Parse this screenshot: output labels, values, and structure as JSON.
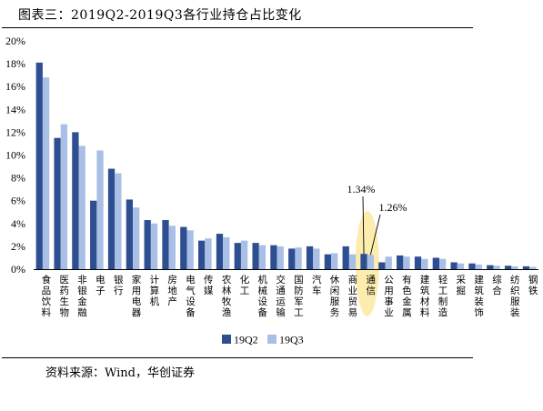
{
  "header": {
    "title": "图表三：2019Q2-2019Q3各行业持仓占比变化"
  },
  "footer": {
    "source": "资料来源：Wind，华创证券"
  },
  "chart_data": {
    "type": "bar",
    "categories": [
      "食品饮料",
      "医药生物",
      "非银金融",
      "电子",
      "银行",
      "家用电器",
      "计算机",
      "房地产",
      "电气设备",
      "传媒",
      "农林牧渔",
      "化工",
      "机械设备",
      "交通运输",
      "国防军工",
      "汽车",
      "休闲服务",
      "商业贸易",
      "通信",
      "公用事业",
      "有色金属",
      "建筑材料",
      "轻工制造",
      "采掘",
      "建筑装饰",
      "综合",
      "纺织服装",
      "钢铁"
    ],
    "series": [
      {
        "name": "19Q2",
        "color": "#2E4E92",
        "values": [
          18.1,
          11.5,
          12.0,
          6.0,
          8.8,
          6.1,
          4.3,
          4.3,
          3.7,
          2.5,
          3.1,
          2.3,
          2.3,
          2.1,
          1.8,
          2.0,
          1.3,
          2.0,
          1.34,
          0.6,
          1.2,
          1.1,
          1.0,
          0.6,
          0.5,
          0.35,
          0.3,
          0.25
        ]
      },
      {
        "name": "19Q3",
        "color": "#A9BFE6",
        "values": [
          16.8,
          12.7,
          10.8,
          10.4,
          8.4,
          5.4,
          4.0,
          3.8,
          3.4,
          2.7,
          2.8,
          2.5,
          2.1,
          2.0,
          1.9,
          1.8,
          1.4,
          1.3,
          1.26,
          1.1,
          1.1,
          0.9,
          0.9,
          0.5,
          0.4,
          0.3,
          0.25,
          0.2
        ]
      }
    ],
    "yticks": [
      "0%",
      "2%",
      "4%",
      "6%",
      "8%",
      "10%",
      "12%",
      "14%",
      "16%",
      "18%",
      "20%"
    ],
    "ylim": [
      0,
      20
    ],
    "grid": false,
    "legend": "bottom-center",
    "highlight_category": "通信",
    "annotations": [
      {
        "series": "19Q2",
        "category": "通信",
        "text": "1.34%"
      },
      {
        "series": "19Q3",
        "category": "通信",
        "text": "1.26%"
      }
    ]
  }
}
